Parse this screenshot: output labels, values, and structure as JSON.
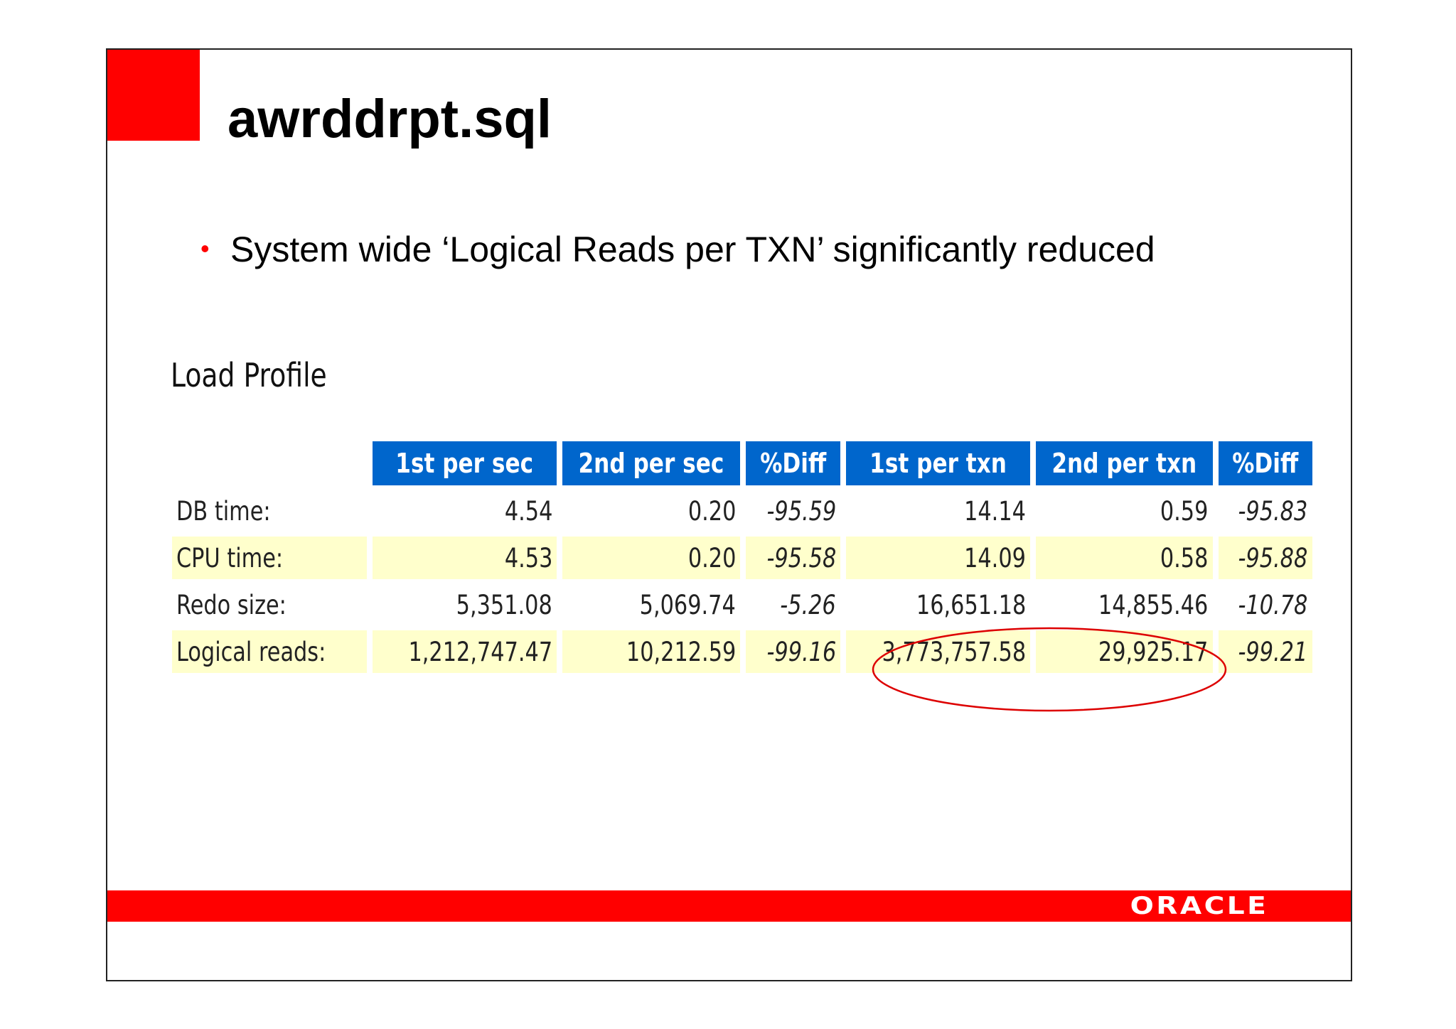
{
  "slide": {
    "title": "awrddrpt.sql",
    "bullet": "System wide ‘Logical Reads per TXN’ significantly reduced",
    "brand_color": "#ff0000"
  },
  "load_profile": {
    "heading": "Load Profile",
    "columns": [
      "1st per sec",
      "2nd per sec",
      "%Diff",
      "1st per txn",
      "2nd per txn",
      "%Diff"
    ],
    "header_color": "#0066cc",
    "alt_row_color": "#ffffcc",
    "rows": [
      {
        "label": "DB time:",
        "values": [
          "4.54",
          "0.20",
          "-95.59",
          "14.14",
          "0.59",
          "-95.83"
        ]
      },
      {
        "label": "CPU time:",
        "values": [
          "4.53",
          "0.20",
          "-95.58",
          "14.09",
          "0.58",
          "-95.88"
        ]
      },
      {
        "label": "Redo size:",
        "values": [
          "5,351.08",
          "5,069.74",
          "-5.26",
          "16,651.18",
          "14,855.46",
          "-10.78"
        ]
      },
      {
        "label": "Logical reads:",
        "values": [
          "1,212,747.47",
          "10,212.59",
          "-99.16",
          "3,773,757.58",
          "29,925.17",
          "-99.21"
        ]
      }
    ],
    "highlight": "Logical reads per txn (1st and 2nd) circled in red"
  },
  "footer": {
    "logo_text": "ORACLE"
  }
}
